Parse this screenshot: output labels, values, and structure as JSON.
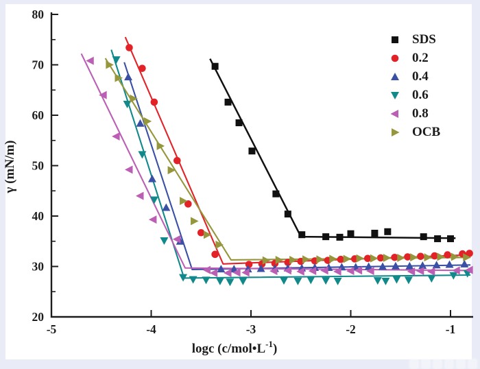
{
  "figure": {
    "outer_background": "#e9ecf6",
    "inner_background": "#ffffff",
    "axis_color": "#1c1c1c",
    "text_color": "#1c1c1c"
  },
  "chart_data": {
    "type": "scatter",
    "title": "",
    "xlabel": "logc (c/mol•L⁻¹)",
    "xlabel_parts": {
      "pre": "logc (c/mol•L",
      "sup": "-1",
      "post": ")"
    },
    "ylabel": "γ (mN/m)",
    "xlim": [
      -5,
      -0.77
    ],
    "ylim": [
      20,
      80.4
    ],
    "x_ticks": [
      -5,
      -4,
      -3,
      -2,
      -1
    ],
    "y_ticks": [
      20,
      30,
      40,
      50,
      60,
      70,
      80
    ],
    "y_minor_ticks": [
      25,
      35,
      45,
      55,
      65,
      75
    ],
    "grid": false,
    "legend_position": "top-right",
    "series": [
      {
        "name": "SDS",
        "marker": "square",
        "color": "#111111",
        "line": [
          [
            -3.41,
            71.2
          ],
          [
            -2.5,
            35.9
          ],
          [
            -0.95,
            35.6
          ]
        ],
        "points": [
          [
            -3.36,
            69.7
          ],
          [
            -3.23,
            62.6
          ],
          [
            -3.12,
            58.5
          ],
          [
            -2.99,
            52.9
          ],
          [
            -2.75,
            44.4
          ],
          [
            -2.63,
            40.4
          ],
          [
            -2.49,
            36.3
          ],
          [
            -2.25,
            35.9
          ],
          [
            -2.11,
            35.8
          ],
          [
            -2.0,
            36.5
          ],
          [
            -1.76,
            36.6
          ],
          [
            -1.63,
            36.9
          ],
          [
            -1.27,
            35.9
          ],
          [
            -1.13,
            35.5
          ],
          [
            -1.0,
            35.5
          ]
        ]
      },
      {
        "name": "0.2",
        "marker": "circle",
        "color": "#e32227",
        "line": [
          [
            -4.26,
            75.5
          ],
          [
            -3.28,
            30.5
          ],
          [
            -0.8,
            32.3
          ]
        ],
        "points": [
          [
            -4.22,
            73.4
          ],
          [
            -4.09,
            69.3
          ],
          [
            -3.97,
            62.6
          ],
          [
            -3.74,
            51.0
          ],
          [
            -3.63,
            42.4
          ],
          [
            -3.5,
            36.7
          ],
          [
            -3.36,
            32.4
          ],
          [
            -3.02,
            30.4
          ],
          [
            -2.89,
            30.5
          ],
          [
            -2.76,
            30.6
          ],
          [
            -2.63,
            30.8
          ],
          [
            -2.5,
            31.0
          ],
          [
            -2.36,
            31.1
          ],
          [
            -2.23,
            31.2
          ],
          [
            -2.1,
            31.4
          ],
          [
            -1.96,
            31.5
          ],
          [
            -1.83,
            31.6
          ],
          [
            -1.7,
            31.7
          ],
          [
            -1.56,
            31.8
          ],
          [
            -1.43,
            31.9
          ],
          [
            -1.3,
            32.0
          ],
          [
            -1.16,
            32.1
          ],
          [
            -1.03,
            32.3
          ],
          [
            -0.88,
            32.5
          ],
          [
            -0.81,
            32.6
          ]
        ]
      },
      {
        "name": "0.4",
        "marker": "triangle-up",
        "color": "#3a50a5",
        "line": [
          [
            -4.27,
            70.5
          ],
          [
            -3.59,
            29.4
          ],
          [
            -0.8,
            30.3
          ]
        ],
        "points": [
          [
            -4.23,
            67.6
          ],
          [
            -4.11,
            58.4
          ],
          [
            -3.99,
            47.4
          ],
          [
            -3.85,
            41.7
          ],
          [
            -3.71,
            35.0
          ],
          [
            -3.3,
            29.5
          ],
          [
            -3.17,
            29.5
          ],
          [
            -3.03,
            29.5
          ],
          [
            -2.9,
            29.6
          ],
          [
            -2.76,
            29.6
          ],
          [
            -2.63,
            29.7
          ],
          [
            -2.49,
            29.7
          ],
          [
            -2.36,
            29.8
          ],
          [
            -2.22,
            29.8
          ],
          [
            -2.09,
            29.9
          ],
          [
            -1.95,
            29.9
          ],
          [
            -1.82,
            30.0
          ],
          [
            -1.68,
            30.0
          ],
          [
            -1.55,
            30.1
          ],
          [
            -1.41,
            30.1
          ],
          [
            -1.28,
            30.2
          ],
          [
            -1.14,
            30.3
          ],
          [
            -1.01,
            30.4
          ],
          [
            -0.86,
            30.5
          ]
        ]
      },
      {
        "name": "0.6",
        "marker": "triangle-down",
        "color": "#11898b",
        "line": [
          [
            -4.4,
            73.0
          ],
          [
            -3.67,
            27.7
          ],
          [
            -0.8,
            28.3
          ]
        ],
        "points": [
          [
            -4.35,
            71.0
          ],
          [
            -4.24,
            62.2
          ],
          [
            -4.09,
            52.2
          ],
          [
            -3.97,
            43.2
          ],
          [
            -3.87,
            35.1
          ],
          [
            -3.68,
            27.8
          ],
          [
            -3.58,
            27.4
          ],
          [
            -3.45,
            27.3
          ],
          [
            -3.31,
            27.1
          ],
          [
            -3.21,
            26.9
          ],
          [
            -3.08,
            27.1
          ],
          [
            -2.67,
            27.2
          ],
          [
            -2.53,
            27.1
          ],
          [
            -2.4,
            27.3
          ],
          [
            -2.25,
            27.2
          ],
          [
            -2.13,
            27.1
          ],
          [
            -1.73,
            27.2
          ],
          [
            -1.65,
            27.1
          ],
          [
            -1.54,
            27.4
          ],
          [
            -1.42,
            27.3
          ],
          [
            -1.19,
            27.6
          ],
          [
            -0.97,
            28.2
          ],
          [
            -0.83,
            28.6
          ]
        ]
      },
      {
        "name": "0.8",
        "marker": "triangle-left",
        "color": "#bb5fb4",
        "line": [
          [
            -4.7,
            72.2
          ],
          [
            -3.66,
            29.7
          ],
          [
            -0.8,
            29.2
          ]
        ],
        "points": [
          [
            -4.61,
            70.8
          ],
          [
            -4.48,
            64.0
          ],
          [
            -4.35,
            55.8
          ],
          [
            -4.22,
            49.2
          ],
          [
            -4.11,
            44.0
          ],
          [
            -3.98,
            39.3
          ],
          [
            -3.74,
            35.4
          ],
          [
            -3.44,
            29.3
          ],
          [
            -3.37,
            28.7
          ],
          [
            -3.23,
            28.7
          ],
          [
            -3.14,
            28.8
          ],
          [
            -3.05,
            28.8
          ],
          [
            -2.77,
            29.1
          ],
          [
            -2.63,
            29.2
          ],
          [
            -2.5,
            29.0
          ],
          [
            -2.38,
            29.1
          ],
          [
            -2.26,
            29.2
          ],
          [
            -2.13,
            29.0
          ],
          [
            -2.0,
            29.1
          ],
          [
            -1.92,
            29.2
          ],
          [
            -1.8,
            29.1
          ],
          [
            -1.39,
            29.0
          ],
          [
            -1.3,
            29.1
          ],
          [
            -1.19,
            29.0
          ],
          [
            -0.94,
            29.2
          ],
          [
            -0.81,
            29.3
          ]
        ]
      },
      {
        "name": "OCB",
        "marker": "triangle-right",
        "color": "#96963c",
        "line": [
          [
            -4.46,
            71.3
          ],
          [
            -3.2,
            31.3
          ],
          [
            -0.8,
            31.8
          ]
        ],
        "points": [
          [
            -4.42,
            70.0
          ],
          [
            -4.33,
            67.4
          ],
          [
            -4.18,
            63.3
          ],
          [
            -4.04,
            58.8
          ],
          [
            -3.91,
            53.9
          ],
          [
            -3.8,
            49.1
          ],
          [
            -3.68,
            43.0
          ],
          [
            -3.57,
            39.0
          ],
          [
            -3.44,
            36.3
          ],
          [
            -3.32,
            34.3
          ],
          [
            -2.85,
            31.2
          ],
          [
            -2.72,
            31.3
          ],
          [
            -2.58,
            31.3
          ],
          [
            -2.45,
            31.4
          ],
          [
            -2.31,
            31.4
          ],
          [
            -2.18,
            31.5
          ],
          [
            -2.04,
            31.5
          ],
          [
            -1.91,
            31.6
          ],
          [
            -1.77,
            31.6
          ],
          [
            -1.64,
            31.7
          ],
          [
            -1.5,
            31.7
          ],
          [
            -1.37,
            31.8
          ],
          [
            -1.23,
            31.8
          ],
          [
            -1.1,
            31.9
          ],
          [
            -0.96,
            31.9
          ],
          [
            -0.84,
            31.8
          ]
        ]
      }
    ]
  }
}
